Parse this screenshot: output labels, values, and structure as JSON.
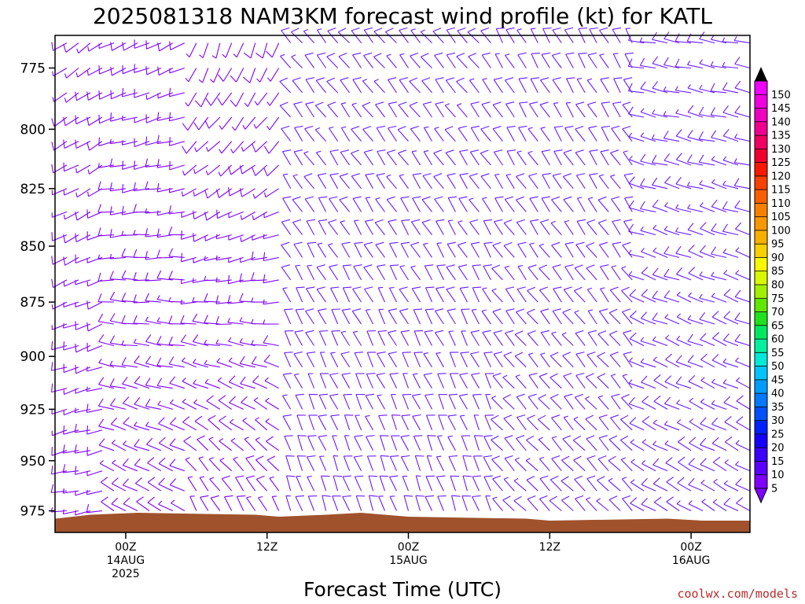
{
  "chart_data": {
    "type": "wind_barb_profile",
    "title": "2025081318 NAM3KM forecast wind profile (kt) for KATL",
    "xlabel": "Forecast Time (UTC)",
    "credit": "coolwx.com/models",
    "x_ticks": [
      {
        "hour": 6,
        "label1": "00Z",
        "label2": "14AUG",
        "label3": "2025"
      },
      {
        "hour": 18,
        "label1": "12Z",
        "label2": "",
        "label3": ""
      },
      {
        "hour": 30,
        "label1": "00Z",
        "label2": "15AUG",
        "label3": ""
      },
      {
        "hour": 42,
        "label1": "12Z",
        "label2": "",
        "label3": ""
      },
      {
        "hour": 54,
        "label1": "00Z",
        "label2": "16AUG",
        "label3": ""
      }
    ],
    "xlim": [
      0,
      59
    ],
    "y_ticks": [
      775,
      800,
      825,
      850,
      875,
      900,
      925,
      950,
      975
    ],
    "ylim": [
      762,
      986
    ],
    "y_scale": "log-pressure",
    "levels_hpa": [
      765,
      775,
      785,
      795,
      805,
      815,
      825,
      835,
      845,
      855,
      865,
      875,
      885,
      895,
      905,
      915,
      925,
      935,
      945,
      955,
      965,
      975
    ],
    "colorbar": {
      "unit": "kt",
      "ticks": [
        5,
        10,
        15,
        20,
        25,
        30,
        35,
        40,
        45,
        50,
        55,
        60,
        65,
        70,
        75,
        80,
        85,
        90,
        95,
        100,
        105,
        110,
        115,
        120,
        125,
        130,
        135,
        140,
        145,
        150
      ],
      "colors": [
        "#7f00ff",
        "#5a00ff",
        "#3c00ff",
        "#1400ff",
        "#0020ff",
        "#0050ff",
        "#0078ff",
        "#009cff",
        "#00c4ff",
        "#00e8d8",
        "#00f0a0",
        "#00e860",
        "#20e020",
        "#60e800",
        "#a0f000",
        "#d8f800",
        "#f8f800",
        "#f8d000",
        "#f8b000",
        "#f89800",
        "#f88000",
        "#f86000",
        "#f84000",
        "#f81800",
        "#f00030",
        "#f00060",
        "#f00090",
        "#f000c0",
        "#f000e0",
        "#f000ff"
      ]
    },
    "terrain_pressure_hpa": [
      {
        "hour": 0,
        "p": 979
      },
      {
        "hour": 3,
        "p": 977
      },
      {
        "hour": 7,
        "p": 976
      },
      {
        "hour": 17,
        "p": 977
      },
      {
        "hour": 19,
        "p": 978
      },
      {
        "hour": 23,
        "p": 977
      },
      {
        "hour": 26,
        "p": 976
      },
      {
        "hour": 28,
        "p": 977
      },
      {
        "hour": 30,
        "p": 978
      },
      {
        "hour": 40,
        "p": 979
      },
      {
        "hour": 42,
        "p": 980
      },
      {
        "hour": 52,
        "p": 979
      },
      {
        "hour": 55,
        "p": 980
      },
      {
        "hour": 59,
        "p": 980
      }
    ],
    "wind_regimes": [
      {
        "hour_start": 0,
        "hour_end": 5,
        "speed_kt": 8,
        "dir_upper": 235,
        "dir_lower": 260,
        "color": "#7f00ff"
      },
      {
        "hour_start": 5,
        "hour_end": 12,
        "speed_kt": 9,
        "dir_upper": 245,
        "dir_lower": 300,
        "color": "#7f00ff"
      },
      {
        "hour_start": 12,
        "hour_end": 20,
        "speed_kt": 7,
        "dir_upper": 200,
        "dir_lower": 330,
        "color": "#7f00ff"
      },
      {
        "hour_start": 20,
        "hour_end": 38,
        "speed_kt": 9,
        "dir_upper": 320,
        "dir_lower": 340,
        "color": "#6a1bff"
      },
      {
        "hour_start": 38,
        "hour_end": 50,
        "speed_kt": 9,
        "dir_upper": 330,
        "dir_lower": 315,
        "color": "#6a1bff"
      },
      {
        "hour_start": 50,
        "hour_end": 60,
        "speed_kt": 8,
        "dir_upper": 280,
        "dir_lower": 300,
        "color": "#6a1bff"
      }
    ]
  }
}
